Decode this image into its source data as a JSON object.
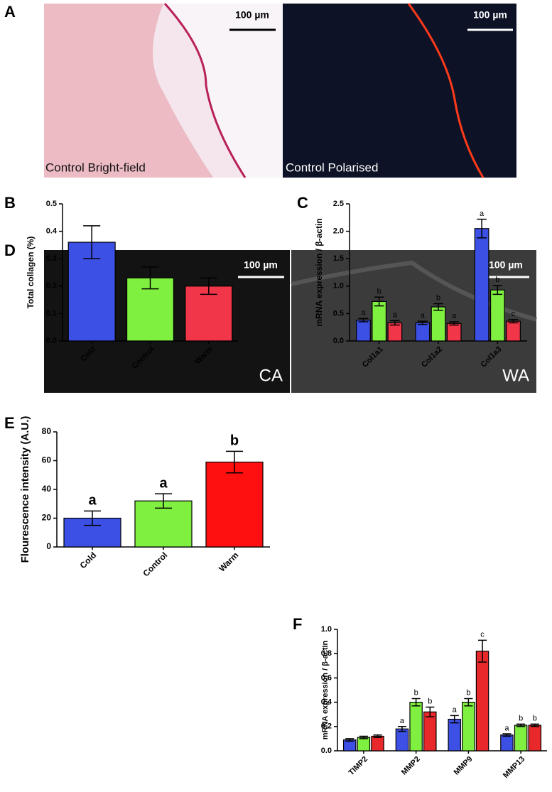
{
  "panel_labels": [
    "A",
    "B",
    "C",
    "D",
    "E",
    "F"
  ],
  "images": [
    {
      "caption": "Control Bright-field",
      "scale_bar": "100 µm"
    },
    {
      "caption": "Control Polarised",
      "scale_bar": "100 µm"
    },
    {
      "caption": "CA",
      "scale_bar": "100 µm"
    },
    {
      "caption": "WA",
      "scale_bar": "100 µm"
    }
  ],
  "chart_data": [
    {
      "type": "bar",
      "ylabel": "Total collagen (%)",
      "categories": [
        "Cold",
        "Control",
        "Warm"
      ],
      "values": [
        0.36,
        0.23,
        0.2
      ],
      "errors": [
        0.06,
        0.04,
        0.03
      ],
      "colors": [
        "#3c50e6",
        "#80f040",
        "#f2364a"
      ],
      "ylim": [
        0,
        0.5
      ],
      "yticks": [
        {
          "value": 0,
          "label": "0.0"
        },
        0.1,
        0.2,
        0.3,
        0.4,
        0.5
      ]
    },
    {
      "type": "grouped_bar",
      "ylabel": "mRNA expression / β-actin",
      "categories": [
        "Col1a1",
        "Col1a2",
        "Col1a3"
      ],
      "series": [
        {
          "color": "#3c50e6",
          "values": [
            0.38,
            0.33,
            2.05
          ],
          "errors": [
            0.03,
            0.03,
            0.17
          ],
          "labels": [
            "a",
            "a",
            "a"
          ]
        },
        {
          "color": "#80f040",
          "values": [
            0.72,
            0.62,
            0.93
          ],
          "errors": [
            0.08,
            0.06,
            0.08
          ],
          "labels": [
            "b",
            "b",
            "b"
          ]
        },
        {
          "color": "#f2364a",
          "values": [
            0.33,
            0.32,
            0.36
          ],
          "errors": [
            0.04,
            0.03,
            0.03
          ],
          "labels": [
            "a",
            "a",
            "c"
          ]
        }
      ],
      "ylim": [
        0,
        2.5
      ],
      "yticks": [
        {
          "value": 0,
          "label": "0.0"
        },
        0.5,
        {
          "value": 1,
          "label": "1.0"
        },
        1.5,
        {
          "value": 2,
          "label": "2.0"
        },
        2.5
      ]
    },
    {
      "type": "bar",
      "ylabel": "Flourescence intensity  (A.U.)",
      "categories": [
        "Cold",
        "Control",
        "Warm"
      ],
      "values": [
        20,
        32,
        59
      ],
      "errors": [
        5,
        5,
        7.5
      ],
      "labels": [
        "a",
        "a",
        "b"
      ],
      "colors": [
        "#3c50e6",
        "#80f040",
        "#ff1010"
      ],
      "ylim": [
        0,
        80
      ],
      "yticks": [
        0,
        20,
        40,
        60,
        80
      ]
    },
    {
      "type": "grouped_bar",
      "ylabel": "mRNA expression / β-actin",
      "categories": [
        "TIMP2",
        "MMP2",
        "MMP9",
        "MMP13"
      ],
      "series": [
        {
          "color": "#3c50e6",
          "values": [
            0.09,
            0.18,
            0.26,
            0.13
          ],
          "errors": [
            0.01,
            0.02,
            0.03,
            0.01
          ],
          "labels": [
            null,
            "a",
            "a",
            "a"
          ]
        },
        {
          "color": "#80f040",
          "values": [
            0.11,
            0.4,
            0.4,
            0.21
          ],
          "errors": [
            0.01,
            0.03,
            0.03,
            0.01
          ],
          "labels": [
            null,
            "b",
            "b",
            "b"
          ]
        },
        {
          "color": "#e8282a",
          "values": [
            0.12,
            0.32,
            0.82,
            0.21
          ],
          "errors": [
            0.01,
            0.04,
            0.09,
            0.01
          ],
          "labels": [
            null,
            "b",
            "c",
            "b"
          ]
        }
      ],
      "ylim": [
        0,
        1
      ],
      "yticks": [
        {
          "value": 0,
          "label": "0.0"
        },
        0.2,
        0.4,
        0.6,
        0.8,
        {
          "value": 1,
          "label": "1.0"
        }
      ]
    }
  ]
}
